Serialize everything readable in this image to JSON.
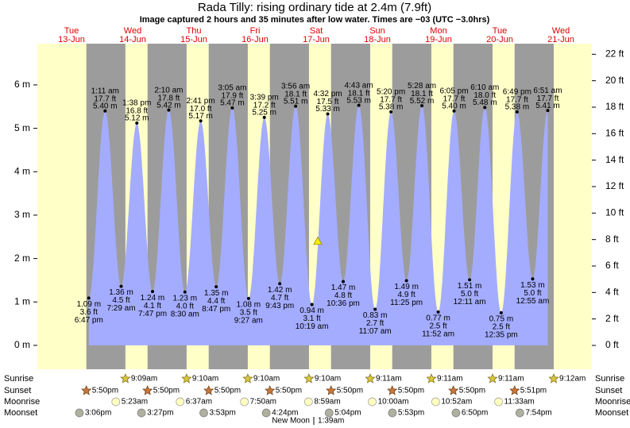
{
  "chart_data": {
    "type": "tide",
    "title": "Rada Tilly: rising  ordinary tide at 2.4m (7.9ft)",
    "subtitle": "Image captured 2 hours and 35 minutes after low water. Times are −03 (UTC −3.0hrs)",
    "current_m": 2.4,
    "days": [
      {
        "weekday": "Tue",
        "date": "13-Jun"
      },
      {
        "weekday": "Wed",
        "date": "14-Jun"
      },
      {
        "weekday": "Thu",
        "date": "15-Jun"
      },
      {
        "weekday": "Fri",
        "date": "16-Jun"
      },
      {
        "weekday": "Sat",
        "date": "17-Jun"
      },
      {
        "weekday": "Sun",
        "date": "18-Jun"
      },
      {
        "weekday": "Mon",
        "date": "19-Jun"
      },
      {
        "weekday": "Tue",
        "date": "20-Jun"
      },
      {
        "weekday": "Wed",
        "date": "21-Jun"
      }
    ],
    "ylim": [
      -0.55,
      6.95
    ],
    "yticks": [
      {
        "value": 0,
        "label": "0 m"
      },
      {
        "value": 1,
        "label": "1 m"
      },
      {
        "value": 2,
        "label": "2 m"
      },
      {
        "value": 3,
        "label": "3 m"
      },
      {
        "value": 4,
        "label": "4 m"
      },
      {
        "value": 5,
        "label": "5 m"
      },
      {
        "value": 6,
        "label": "6 m"
      }
    ],
    "y2lim": [
      -1.8,
      22.8
    ],
    "y2ticks": [
      {
        "value": 0,
        "label": "0 ft"
      },
      {
        "value": 2,
        "label": "2 ft"
      },
      {
        "value": 4,
        "label": "4 ft"
      },
      {
        "value": 6,
        "label": "6 ft"
      },
      {
        "value": 8,
        "label": "8 ft"
      },
      {
        "value": 10,
        "label": "10 ft"
      },
      {
        "value": 12,
        "label": "12 ft"
      },
      {
        "value": 14,
        "label": "14 ft"
      },
      {
        "value": 16,
        "label": "16 ft"
      },
      {
        "value": 18,
        "label": "18 ft"
      },
      {
        "value": 20,
        "label": "20 ft"
      },
      {
        "value": 22,
        "label": "22 ft"
      }
    ],
    "color": "#a4acff",
    "extremes": [
      {
        "time": "6:47 pm",
        "m": 1.09,
        "m_label": "1.09 m",
        "ft_label": "3.6 ft"
      },
      {
        "time": "1:11 am",
        "m": 5.4,
        "m_label": "5.40 m",
        "ft_label": "17.7 ft"
      },
      {
        "time": "7:29 am",
        "m": 1.36,
        "m_label": "1.36 m",
        "ft_label": "4.5 ft"
      },
      {
        "time": "1:38 pm",
        "m": 5.12,
        "m_label": "5.12 m",
        "ft_label": "16.8 ft"
      },
      {
        "time": "7:47 pm",
        "m": 1.24,
        "m_label": "1.24 m",
        "ft_label": "4.1 ft"
      },
      {
        "time": "2:10 am",
        "m": 5.42,
        "m_label": "5.42 m",
        "ft_label": "17.8 ft"
      },
      {
        "time": "8:30 am",
        "m": 1.23,
        "m_label": "1.23 m",
        "ft_label": "4.0 ft"
      },
      {
        "time": "2:41 pm",
        "m": 5.17,
        "m_label": "5.17 m",
        "ft_label": "17.0 ft"
      },
      {
        "time": "8:47 pm",
        "m": 1.35,
        "m_label": "1.35 m",
        "ft_label": "4.4 ft"
      },
      {
        "time": "3:05 am",
        "m": 5.47,
        "m_label": "5.47 m",
        "ft_label": "17.9 ft"
      },
      {
        "time": "9:27 am",
        "m": 1.08,
        "m_label": "1.08 m",
        "ft_label": "3.5 ft"
      },
      {
        "time": "3:39 pm",
        "m": 5.25,
        "m_label": "5.25 m",
        "ft_label": "17.2 ft"
      },
      {
        "time": "9:43 pm",
        "m": 1.42,
        "m_label": "1.42 m",
        "ft_label": "4.7 ft"
      },
      {
        "time": "3:56 am",
        "m": 5.51,
        "m_label": "5.51 m",
        "ft_label": "18.1 ft"
      },
      {
        "time": "10:19 am",
        "m": 0.94,
        "m_label": "0.94 m",
        "ft_label": "3.1 ft"
      },
      {
        "time": "4:32 pm",
        "m": 5.33,
        "m_label": "5.33 m",
        "ft_label": "17.5 ft"
      },
      {
        "time": "10:36 pm",
        "m": 1.47,
        "m_label": "1.47 m",
        "ft_label": "4.8 ft"
      },
      {
        "time": "4:43 am",
        "m": 5.53,
        "m_label": "5.53 m",
        "ft_label": "18.1 ft"
      },
      {
        "time": "11:07 am",
        "m": 0.83,
        "m_label": "0.83 m",
        "ft_label": "2.7 ft"
      },
      {
        "time": "5:20 pm",
        "m": 5.38,
        "m_label": "5.38 m",
        "ft_label": "17.7 ft"
      },
      {
        "time": "11:25 pm",
        "m": 1.49,
        "m_label": "1.49 m",
        "ft_label": "4.9 ft"
      },
      {
        "time": "5:28 am",
        "m": 5.52,
        "m_label": "5.52 m",
        "ft_label": "18.1 ft"
      },
      {
        "time": "11:52 am",
        "m": 0.77,
        "m_label": "0.77 m",
        "ft_label": "2.5 ft"
      },
      {
        "time": "6:05 pm",
        "m": 5.4,
        "m_label": "5.40 m",
        "ft_label": "17.7 ft"
      },
      {
        "time": "12:11 am",
        "m": 1.51,
        "m_label": "1.51 m",
        "ft_label": "5.0 ft"
      },
      {
        "time": "6:10 am",
        "m": 5.48,
        "m_label": "5.48 m",
        "ft_label": "18.0 ft"
      },
      {
        "time": "12:35 pm",
        "m": 0.75,
        "m_label": "0.75 m",
        "ft_label": "2.5 ft"
      },
      {
        "time": "6:49 pm",
        "m": 5.38,
        "m_label": "5.38 m",
        "ft_label": "17.7 ft"
      },
      {
        "time": "12:55 am",
        "m": 1.53,
        "m_label": "1.53 m",
        "ft_label": "5.0 ft"
      },
      {
        "time": "6:51 am",
        "m": 5.41,
        "m_label": "5.41 m",
        "ft_label": "17.7 ft"
      }
    ],
    "sunrise": {
      "label": "Sunrise",
      "times": [
        "9:09am",
        "9:10am",
        "9:10am",
        "9:10am",
        "9:11am",
        "9:11am",
        "9:11am",
        "9:12am"
      ]
    },
    "sunset": {
      "label": "Sunset",
      "times": [
        "5:50pm",
        "5:50pm",
        "5:50pm",
        "5:50pm",
        "5:50pm",
        "5:50pm",
        "5:50pm",
        "5:51pm"
      ]
    },
    "moonrise": {
      "label": "Moonrise",
      "times": [
        "5:23am",
        "6:37am",
        "7:50am",
        "8:59am",
        "10:00am",
        "10:52am",
        "11:33am"
      ]
    },
    "moonset": {
      "label": "Moonset",
      "times": [
        "3:06pm",
        "3:27pm",
        "3:53pm",
        "4:24pm",
        "5:04pm",
        "5:53pm",
        "6:50pm",
        "7:54pm"
      ]
    },
    "moon_phase": "New Moon",
    "moon_phase_time": "1:39am"
  }
}
